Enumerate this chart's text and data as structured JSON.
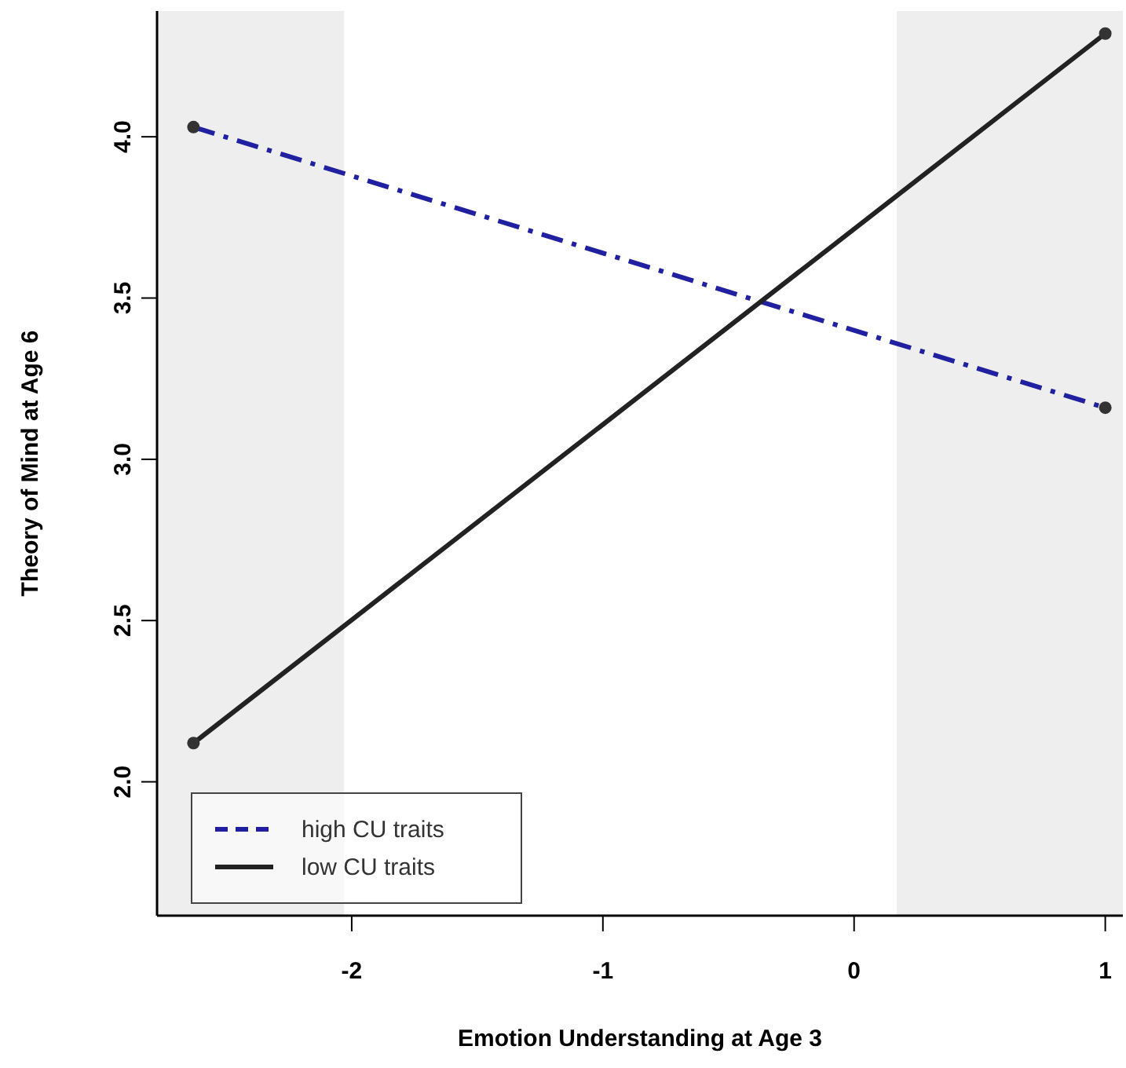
{
  "chart_data": {
    "type": "line",
    "xlabel": "Emotion Understanding at Age 3",
    "ylabel": "Theory of Mind at Age 6",
    "x": [
      -2.63,
      1.0
    ],
    "series": [
      {
        "name": "high CU traits",
        "color": "#2020a0",
        "values": [
          4.03,
          3.16
        ],
        "line_style": "dashed"
      },
      {
        "name": "low CU traits",
        "color": "#222222",
        "values": [
          2.12,
          4.32
        ],
        "line_style": "solid"
      }
    ],
    "xlim": [
      -2.775,
      1.07
    ],
    "xticks": [
      -2,
      -1,
      0,
      1
    ],
    "ylim": [
      1.585,
      4.39
    ],
    "yticks": [
      {
        "value": 2,
        "label": "2.0"
      },
      {
        "value": 2.5,
        "label": "2.5"
      },
      {
        "value": 3,
        "label": "3.0"
      },
      {
        "value": 3.5,
        "label": "3.5"
      },
      {
        "value": 4,
        "label": "4.0"
      }
    ],
    "bands": [
      {
        "axis": "x",
        "from": -2.775,
        "to": -2.03,
        "color": "#eeeeee"
      },
      {
        "axis": "x",
        "from": 0.17,
        "to": 1.07,
        "color": "#eeeeee"
      }
    ],
    "marker": "circle",
    "legend": "bottom left",
    "grid": false
  }
}
